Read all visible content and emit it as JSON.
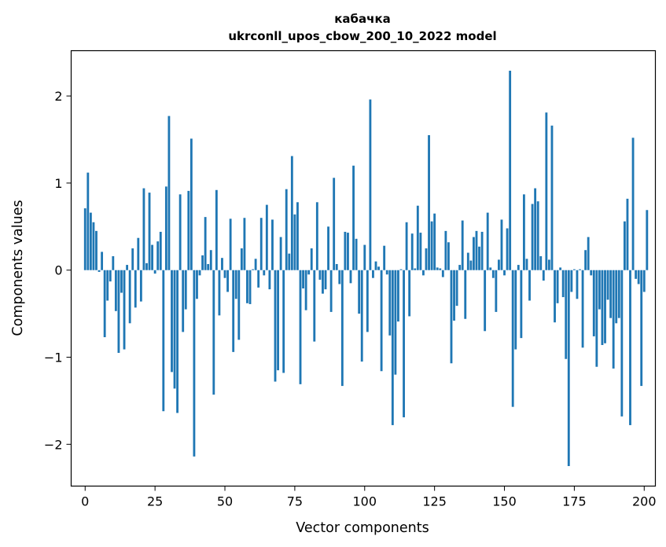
{
  "chart_data": {
    "type": "bar",
    "title": "кабачка",
    "subtitle": "ukrconll_upos_cbow_200_10_2022 model",
    "xlabel": "Vector components",
    "ylabel": "Components values",
    "xlim": [
      -5,
      204
    ],
    "ylim": [
      -2.48,
      2.52
    ],
    "xticks": [
      0,
      25,
      50,
      75,
      100,
      125,
      150,
      175,
      200
    ],
    "xtick_labels": [
      "0",
      "25",
      "50",
      "75",
      "100",
      "125",
      "150",
      "175",
      "200"
    ],
    "yticks": [
      -2,
      -1,
      0,
      1,
      2
    ],
    "ytick_labels": [
      "−2",
      "−1",
      "0",
      "1",
      "2"
    ],
    "grid": false,
    "color": "#1f77b4",
    "values": [
      0.71,
      1.12,
      0.66,
      0.55,
      0.45,
      -0.02,
      0.21,
      -0.77,
      -0.35,
      -0.13,
      0.16,
      -0.47,
      -0.95,
      -0.26,
      -0.91,
      0.06,
      -0.61,
      0.25,
      -0.43,
      0.37,
      -0.36,
      0.94,
      0.08,
      0.89,
      0.29,
      -0.04,
      0.33,
      0.44,
      -1.62,
      0.96,
      1.77,
      -1.17,
      -1.36,
      -1.64,
      0.87,
      -0.71,
      -0.45,
      0.91,
      1.51,
      -2.14,
      -0.33,
      -0.06,
      0.17,
      0.61,
      0.07,
      0.23,
      -1.43,
      0.92,
      -0.52,
      0.14,
      -0.09,
      -0.25,
      0.59,
      -0.94,
      -0.33,
      -0.8,
      0.25,
      0.6,
      -0.38,
      -0.39,
      0.01,
      0.13,
      -0.2,
      0.6,
      -0.06,
      0.75,
      -0.22,
      0.58,
      -1.28,
      -1.15,
      0.38,
      -1.18,
      0.93,
      0.19,
      1.31,
      0.64,
      0.78,
      -1.31,
      -0.21,
      -0.46,
      -0.05,
      0.25,
      -0.82,
      0.78,
      -0.11,
      -0.27,
      -0.22,
      0.5,
      -0.48,
      1.06,
      0.07,
      -0.16,
      -1.33,
      0.44,
      0.43,
      -0.15,
      1.2,
      0.36,
      -0.5,
      -1.05,
      0.29,
      -0.71,
      1.96,
      -0.09,
      0.1,
      0.04,
      -1.16,
      0.28,
      -0.05,
      -0.75,
      -1.78,
      -1.2,
      -0.59,
      0.01,
      -1.69,
      0.55,
      -0.53,
      0.42,
      0.02,
      0.74,
      0.43,
      -0.06,
      0.25,
      1.55,
      0.56,
      0.65,
      0.03,
      0.02,
      -0.08,
      0.45,
      0.32,
      -1.07,
      -0.58,
      -0.41,
      0.06,
      0.57,
      -0.56,
      0.2,
      0.11,
      0.38,
      0.45,
      0.27,
      0.44,
      -0.7,
      0.66,
      0.03,
      -0.09,
      -0.48,
      0.12,
      0.58,
      -0.06,
      0.48,
      2.29,
      -1.57,
      -0.91,
      0.06,
      -0.78,
      0.87,
      0.13,
      -0.35,
      0.76,
      0.94,
      0.79,
      0.16,
      -0.12,
      1.81,
      0.12,
      1.66,
      -0.6,
      -0.38,
      0.03,
      -0.31,
      -1.02,
      -2.25,
      -0.25,
      0.01,
      -0.33,
      0.01,
      -0.89,
      0.23,
      0.38,
      -0.06,
      -0.76,
      -1.11,
      -0.45,
      -0.86,
      -0.84,
      -0.34,
      -0.55,
      -1.13,
      -0.61,
      -0.55,
      -1.68,
      0.56,
      0.82,
      -1.78,
      1.52,
      -0.1,
      -0.16,
      -1.33,
      -0.25,
      0.69
    ]
  }
}
